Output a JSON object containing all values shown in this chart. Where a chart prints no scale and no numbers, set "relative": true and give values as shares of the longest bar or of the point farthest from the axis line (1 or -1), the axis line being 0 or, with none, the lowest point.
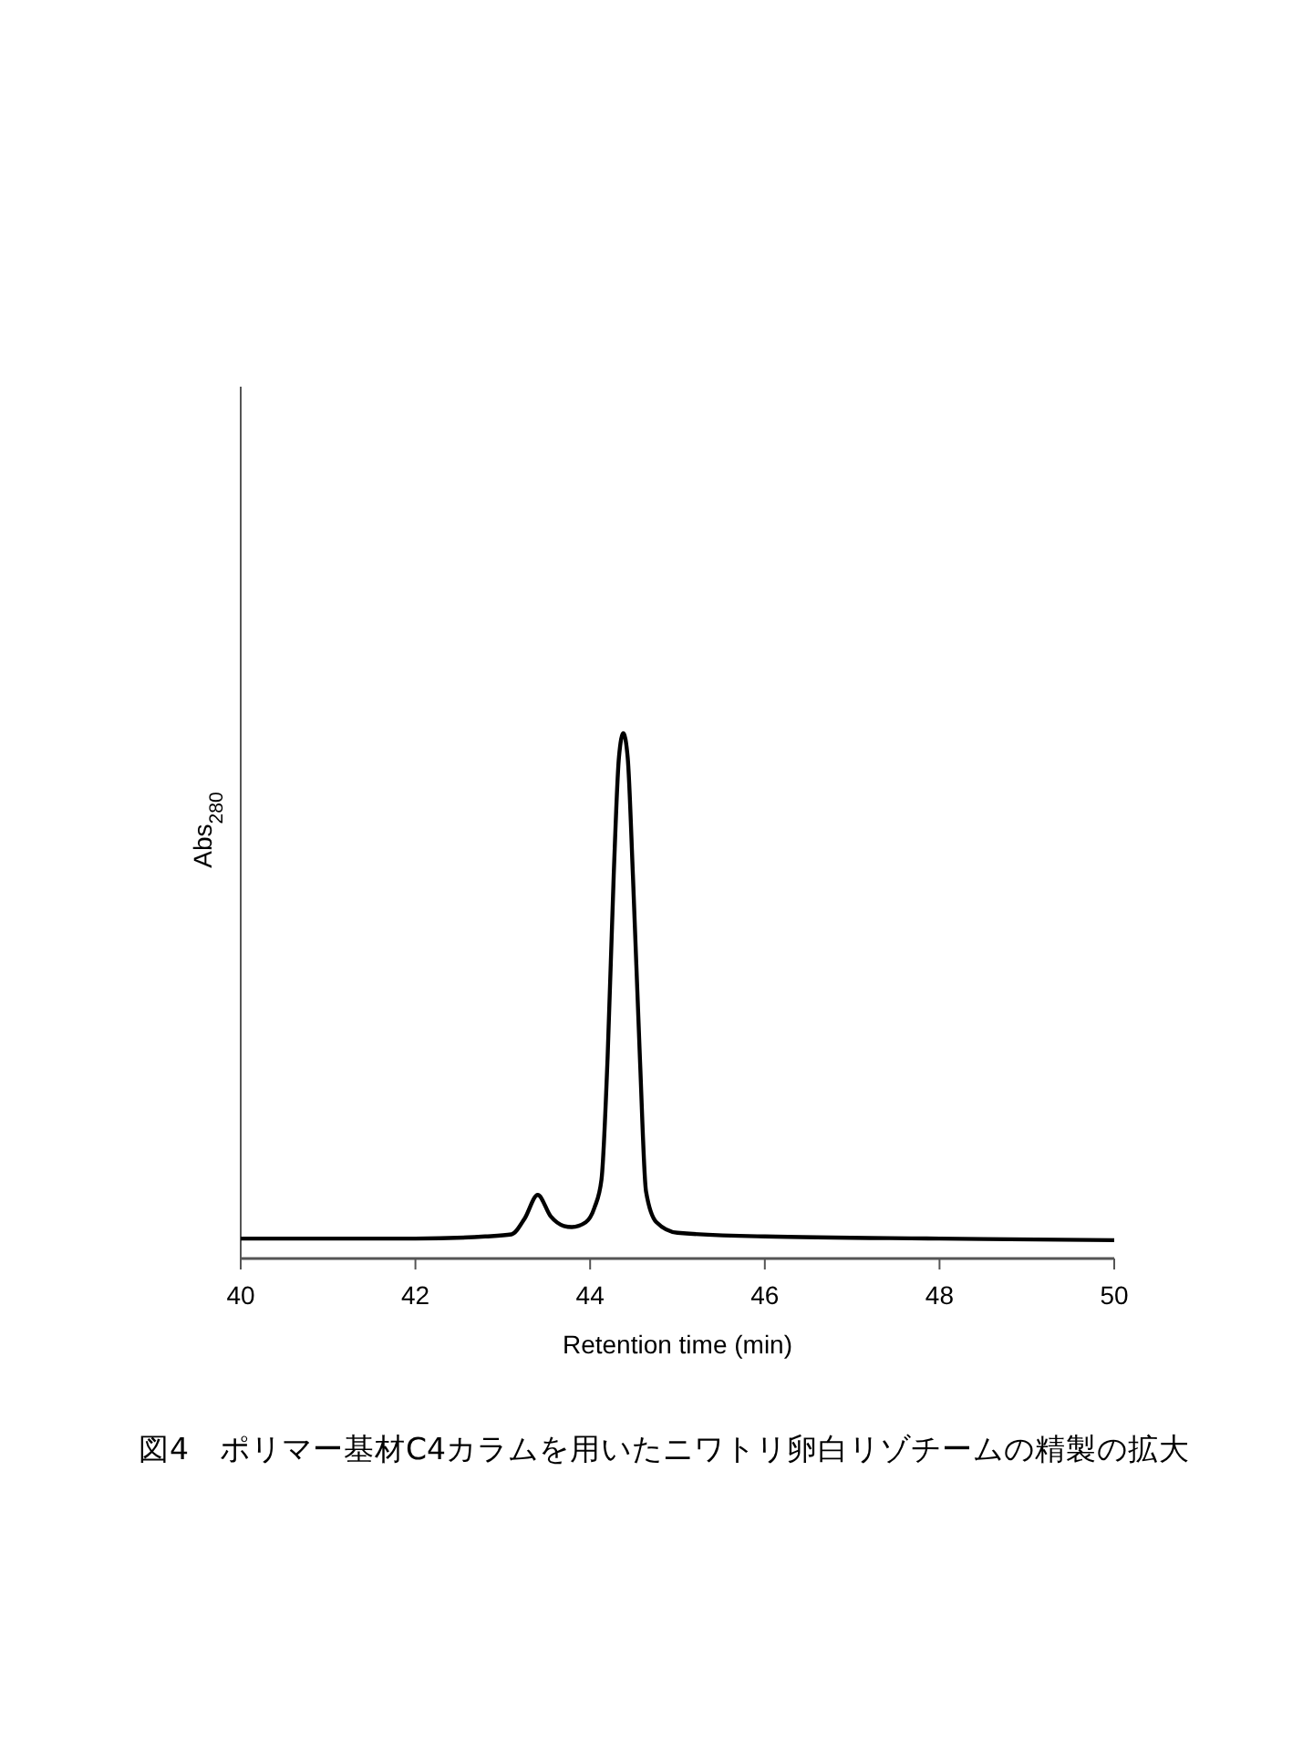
{
  "chart_data": {
    "type": "line",
    "title": "図4　ポリマー基材C4カラムを用いたニワトリ卵白リゾチームの精製の拡大",
    "xlabel": "Retention time (min)",
    "ylabel": "Abs$_{280}$",
    "relative": true,
    "xlim": [
      40,
      50
    ],
    "xticks": [
      40,
      42,
      44,
      46,
      48,
      50
    ],
    "grid": false,
    "marker": "none",
    "line_style": "solid",
    "series": [
      {
        "color": "#000000",
        "x": [
          40,
          42,
          42.8,
          43.1,
          43.25,
          43.4,
          43.55,
          43.7,
          43.79,
          43.95,
          44.05,
          44.13,
          44.2,
          44.27,
          44.33,
          44.38,
          44.43,
          44.49,
          44.57,
          44.64,
          44.76,
          45,
          46,
          48,
          50
        ],
        "values": [
          0.038,
          0.038,
          0.042,
          0.046,
          0.076,
          0.121,
          0.08,
          0.062,
          0.06,
          0.069,
          0.097,
          0.15,
          0.382,
          0.729,
          0.954,
          1,
          0.954,
          0.729,
          0.382,
          0.128,
          0.069,
          0.049,
          0.042,
          0.038,
          0.035
        ]
      }
    ]
  }
}
